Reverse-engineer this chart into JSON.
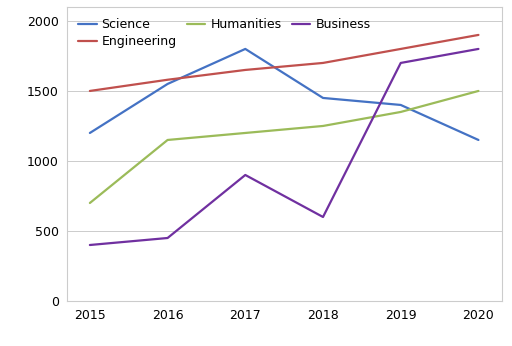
{
  "years": [
    2015,
    2016,
    2017,
    2018,
    2019,
    2020
  ],
  "series": {
    "Science": {
      "values": [
        1200,
        1550,
        1800,
        1450,
        1400,
        1150
      ],
      "color": "#4472C4"
    },
    "Engineering": {
      "values": [
        1500,
        1580,
        1650,
        1700,
        1800,
        1900
      ],
      "color": "#C0504D"
    },
    "Humanities": {
      "values": [
        700,
        1150,
        1200,
        1250,
        1350,
        1500
      ],
      "color": "#9BBB59"
    },
    "Business": {
      "values": [
        400,
        450,
        900,
        600,
        1700,
        1800
      ],
      "color": "#7030A0"
    }
  },
  "ylim": [
    0,
    2100
  ],
  "yticks": [
    0,
    500,
    1000,
    1500,
    2000
  ],
  "xlim": [
    2014.7,
    2020.3
  ],
  "xticks": [
    2015,
    2016,
    2017,
    2018,
    2019,
    2020
  ],
  "legend_order": [
    "Science",
    "Engineering",
    "Humanities",
    "Business"
  ],
  "background_color": "#ffffff",
  "box_color": "#cccccc",
  "grid_color": "#cccccc",
  "linewidth": 1.6,
  "legend_fontsize": 9,
  "tick_fontsize": 9
}
